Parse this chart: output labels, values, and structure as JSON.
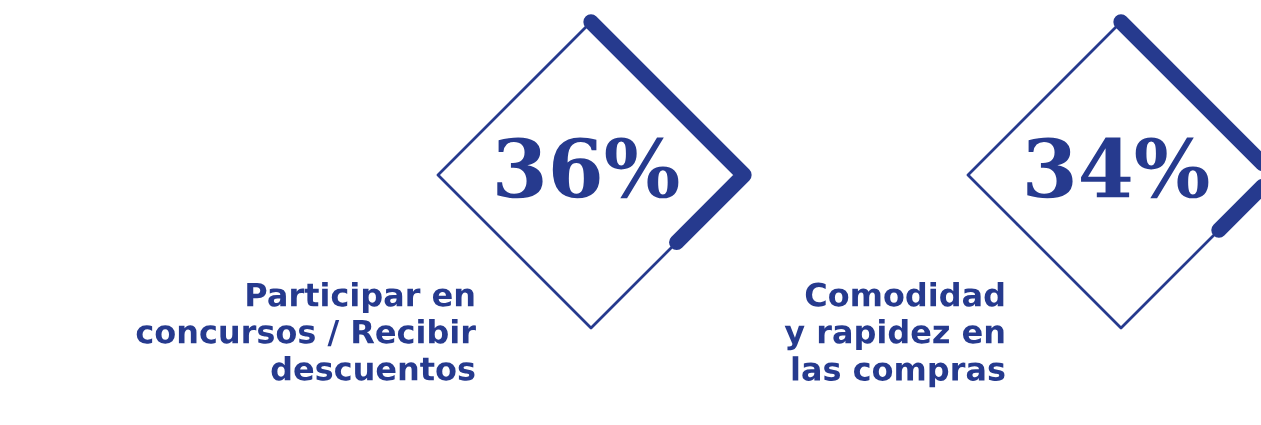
{
  "chart_data": {
    "type": "other",
    "categories": [
      "Participar en\nconcursos / Recibir\ndescuentos",
      "Comodidad\ny rapidez en\nlas compras"
    ],
    "values": [
      36,
      34
    ],
    "value_labels": [
      "36%",
      "34%"
    ],
    "color": "#263a8e"
  }
}
